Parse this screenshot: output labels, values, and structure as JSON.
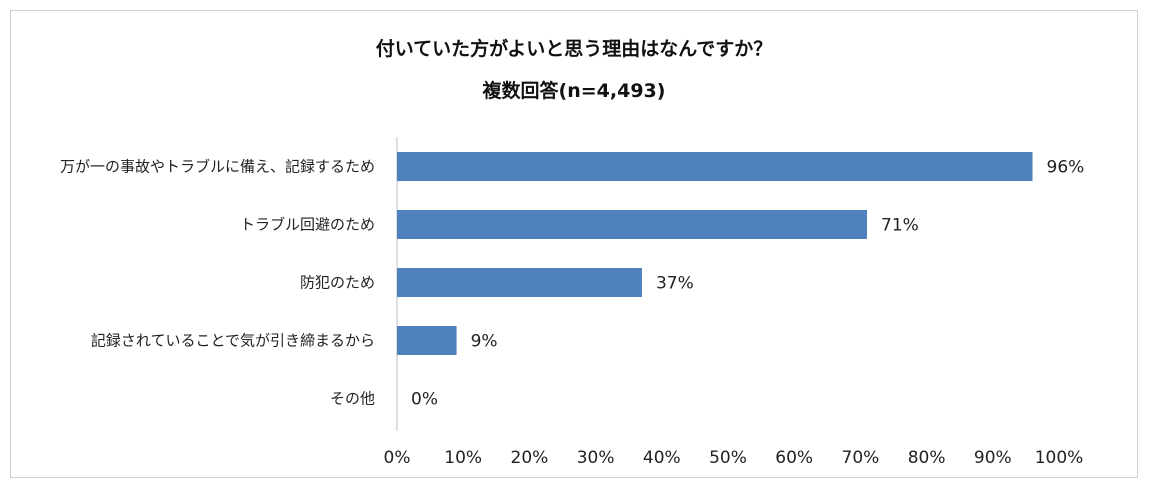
{
  "chart_data": {
    "type": "bar",
    "orientation": "horizontal",
    "title": "付いていた方がよいと思う理由はなんですか？",
    "subtitle": "複数回答(n=4,493)",
    "categories": [
      "万が一の事故やトラブルに備え、記録するため",
      "トラブル回避のため",
      "防犯のため",
      "記録されていることで気が引き締まるから",
      "その他"
    ],
    "values": [
      96,
      71,
      37,
      9,
      0
    ],
    "data_labels": [
      "96%",
      "71%",
      "37%",
      "9%",
      "0%"
    ],
    "xlim": [
      0,
      100
    ],
    "x_ticks": [
      "0%",
      "10%",
      "20%",
      "30%",
      "40%",
      "50%",
      "60%",
      "70%",
      "80%",
      "90%",
      "100%"
    ],
    "grid": false,
    "legend": "none",
    "bar_color": "#4f81bd",
    "axis_color": "#bfbfbf"
  }
}
